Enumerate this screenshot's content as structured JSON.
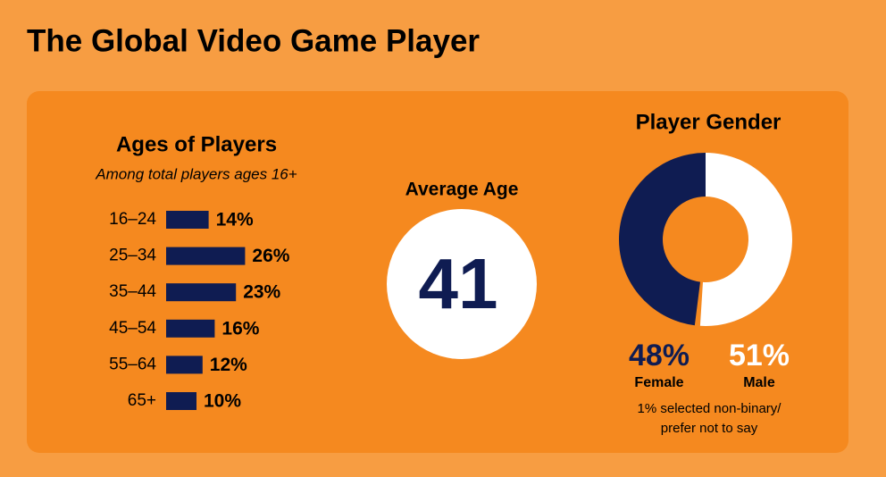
{
  "title": "The Global Video Game Player",
  "chart_data": [
    {
      "type": "bar",
      "title": "Ages of Players",
      "subtitle": "Among total players ages 16+",
      "categories": [
        "16–24",
        "25–34",
        "35–44",
        "45–54",
        "55–64",
        "65+"
      ],
      "values": [
        14,
        26,
        23,
        16,
        12,
        10
      ],
      "value_labels": [
        "14%",
        "26%",
        "23%",
        "16%",
        "12%",
        "10%"
      ],
      "color": "#0f1c52"
    },
    {
      "type": "stat",
      "title": "Average Age",
      "value": 41,
      "color": "#0f1c52"
    },
    {
      "type": "donut",
      "title": "Player Gender",
      "categories": [
        "Female",
        "Male"
      ],
      "values": [
        48,
        51
      ],
      "value_labels": [
        "48%",
        "51%"
      ],
      "colors": [
        "#0f1c52",
        "#ffffff"
      ],
      "note": [
        "1% selected non-binary/",
        "prefer not to say"
      ]
    }
  ]
}
